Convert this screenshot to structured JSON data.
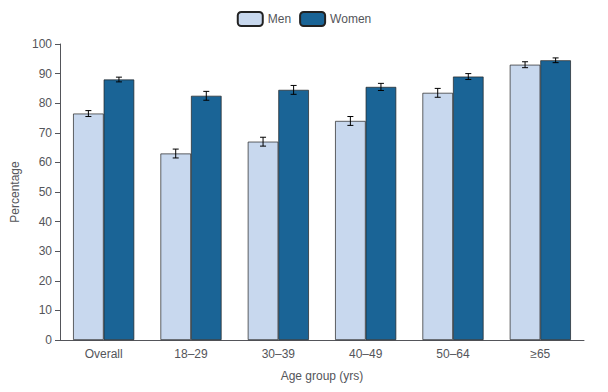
{
  "chart_data": {
    "type": "bar",
    "xlabel": "Age group (yrs)",
    "ylabel": "Percentage",
    "categories": [
      "Overall",
      "18–29",
      "30–39",
      "40–49",
      "50–64",
      "≥65"
    ],
    "series": [
      {
        "name": "Men",
        "color": "#c8d8ee",
        "values": [
          76.5,
          63.0,
          67.0,
          74.0,
          83.5,
          93.0
        ],
        "errors": [
          1.0,
          1.5,
          1.5,
          1.5,
          1.5,
          1.0
        ]
      },
      {
        "name": "Women",
        "color": "#1a6496",
        "values": [
          88.0,
          82.5,
          84.5,
          85.5,
          89.0,
          94.5
        ],
        "errors": [
          0.8,
          1.5,
          1.5,
          1.2,
          1.0,
          0.8
        ]
      }
    ],
    "ylim": [
      0,
      100
    ],
    "yticks": [
      0,
      10,
      20,
      30,
      40,
      50,
      60,
      70,
      80,
      90,
      100
    ],
    "legend": "top",
    "grid": false
  }
}
